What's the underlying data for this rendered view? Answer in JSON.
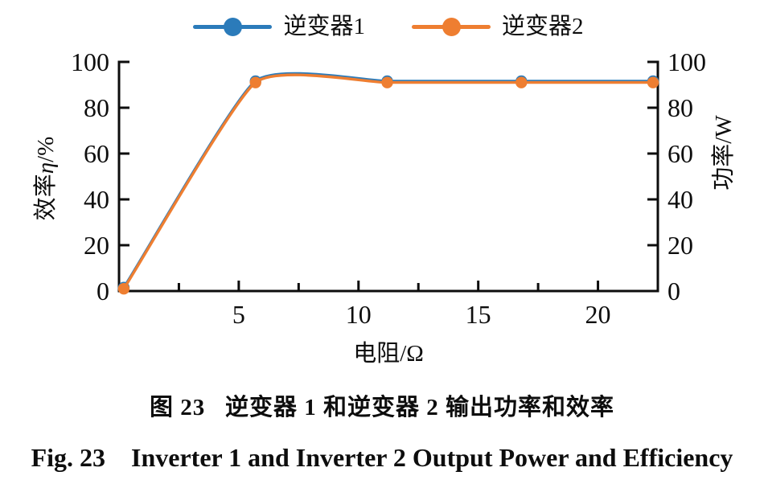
{
  "figure": {
    "caption_zh": "图 23   逆变器 1 和逆变器 2 输出功率和效率",
    "caption_en": "Fig. 23    Inverter 1 and Inverter 2 Output Power and Efficiency"
  },
  "chart_data": {
    "type": "line",
    "title": "",
    "xlabel": "电阻/Ω",
    "ylabel_left": "效率η/%",
    "ylabel_left_parts": {
      "prefix": "效率",
      "eta": "η",
      "suffix": "/%"
    },
    "ylabel_right": "功率/W",
    "xlim": [
      0,
      22.5
    ],
    "ylim": [
      0,
      100
    ],
    "x_major_ticks": [
      5,
      10,
      15,
      20
    ],
    "x_minor_ticks": [
      2.5,
      7.5,
      12.5,
      17.5,
      22.5
    ],
    "y_left_ticks": [
      0,
      20,
      40,
      60,
      80,
      100
    ],
    "y_right_ticks": [
      0,
      20,
      40,
      60,
      80,
      100
    ],
    "grid": false,
    "legend_position": "top-center",
    "smoothing": "cardinal-spline",
    "series": [
      {
        "name": "逆变器1",
        "color": "#2B7BBA",
        "x": [
          0.2,
          5.7,
          11.2,
          16.8,
          22.3
        ],
        "y": [
          1.5,
          91.6,
          91.6,
          91.6,
          91.6
        ]
      },
      {
        "name": "逆变器2",
        "color": "#EE7E31",
        "x": [
          0.2,
          5.7,
          11.2,
          16.8,
          22.3
        ],
        "y": [
          1.0,
          91.0,
          91.0,
          91.0,
          91.0
        ]
      }
    ]
  },
  "colors": {
    "axis": "#0d0d0d",
    "text": "#0d0d0d",
    "background": "#ffffff",
    "series1": "#2B7BBA",
    "series2": "#EE7E31"
  }
}
